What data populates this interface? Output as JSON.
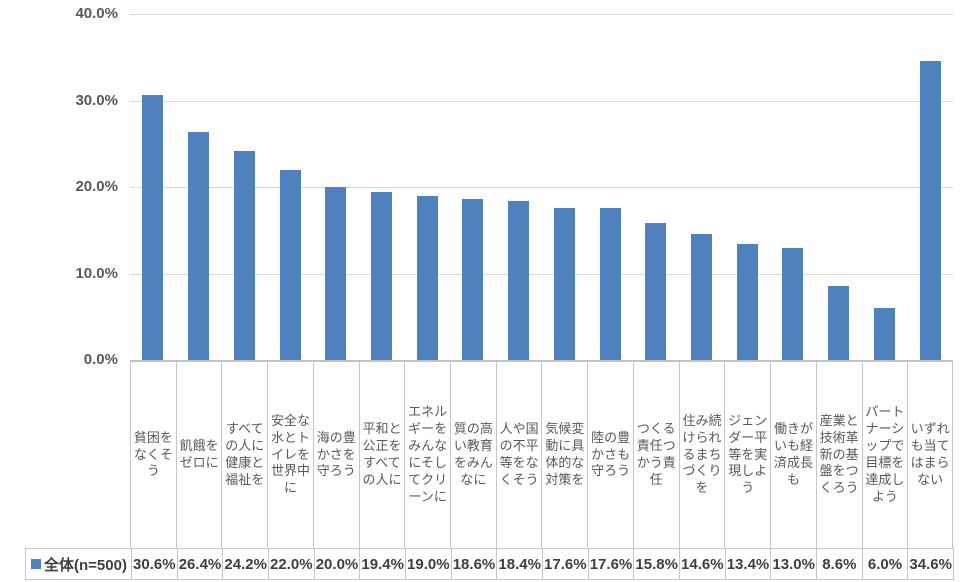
{
  "chart_data": {
    "type": "bar",
    "title": "",
    "categories": [
      "貧困をなくそう",
      "飢餓をゼロに",
      "すべての人に健康と福祉を",
      "安全な水とトイレを世界中に",
      "海の豊かさを守ろう",
      "平和と公正をすべての人に",
      "エネルギーをみんなにそしてクリーンに",
      "質の高い教育をみんなに",
      "人や国の不平等をなくそう",
      "気候変動に具体的な対策を",
      "陸の豊かさも守ろう",
      "つくる責任つかう責任",
      "住み続けられるまちづくりを",
      "ジェンダー平等を実現しよう",
      "働きがいも経済成長も",
      "産業と技術革新の基盤をつくろう",
      "パートナーシップで目標を達成しよう",
      "いずれも当てはまらない"
    ],
    "series": [
      {
        "name": "全体(n=500)",
        "values": [
          30.6,
          26.4,
          24.2,
          22.0,
          20.0,
          19.4,
          19.0,
          18.6,
          18.4,
          17.6,
          17.6,
          15.8,
          14.6,
          13.4,
          13.0,
          8.6,
          6.0,
          34.6
        ],
        "value_labels": [
          "30.6%",
          "26.4%",
          "24.2%",
          "22.0%",
          "20.0%",
          "19.4%",
          "19.0%",
          "18.6%",
          "18.4%",
          "17.6%",
          "17.6%",
          "15.8%",
          "14.6%",
          "13.4%",
          "13.0%",
          "8.6%",
          "6.0%",
          "34.6%"
        ]
      }
    ],
    "xlabel": "",
    "ylabel": "",
    "ylim": [
      0,
      40
    ],
    "ytick_labels": [
      "40.0%",
      "30.0%",
      "20.0%",
      "10.0%",
      "0.0%"
    ],
    "grid": true,
    "legend_position": "data-table-left",
    "colors": {
      "bar": "#4e81bd",
      "grid_line": "#d9d9d9",
      "table_border": "#c6c6c6",
      "axis_text": "#595959",
      "value_text": "#3f3f3f"
    }
  }
}
